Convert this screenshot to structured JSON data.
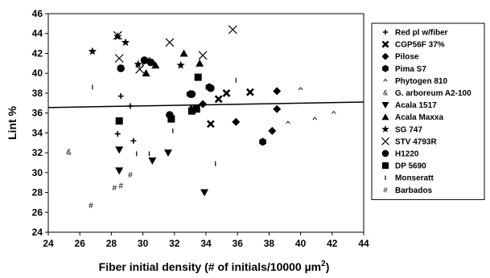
{
  "chart_data": {
    "type": "scatter",
    "title": "",
    "xlabel": "Fiber initial density (# of initials/10000 µm²)",
    "xlabel_main": "Fiber initial density (# of initials/10000 ",
    "xlabel_unit": "µm",
    "xlabel_sup": "2",
    "xlabel_end": ")",
    "ylabel": "Lint %",
    "xlim": [
      24,
      44
    ],
    "ylim": [
      24,
      46
    ],
    "xticks": [
      "24",
      "26",
      "28",
      "30",
      "32",
      "34",
      "36",
      "38",
      "40",
      "42",
      "44"
    ],
    "yticks": [
      "24",
      "26",
      "28",
      "30",
      "32",
      "34",
      "36",
      "38",
      "40",
      "42",
      "44",
      "46"
    ],
    "grid": false,
    "legend_position": "right",
    "trendline": {
      "x": [
        24,
        44
      ],
      "y": [
        36.55,
        37.1
      ]
    },
    "series": [
      {
        "name": "Red pl w/fiber",
        "marker": "plus",
        "points": [
          [
            28.6,
            37.7
          ],
          [
            29.2,
            36.7
          ],
          [
            28.4,
            33.9
          ],
          [
            29.4,
            33.2
          ]
        ]
      },
      {
        "name": "CGP56F 37%",
        "marker": "x-bold",
        "points": [
          [
            34.3,
            34.9
          ],
          [
            35.3,
            38.0
          ],
          [
            36.8,
            38.1
          ],
          [
            34.8,
            37.4
          ],
          [
            33.2,
            36.4
          ]
        ]
      },
      {
        "name": "Pilose",
        "marker": "diamond",
        "points": [
          [
            35.9,
            35.1
          ],
          [
            38.5,
            38.2
          ],
          [
            38.5,
            36.4
          ],
          [
            38.2,
            34.2
          ],
          [
            33.8,
            36.9
          ],
          [
            33.0,
            37.9
          ]
        ]
      },
      {
        "name": "Pima S7",
        "marker": "hexagon",
        "points": [
          [
            37.6,
            33.1
          ],
          [
            34.2,
            38.6
          ],
          [
            33.0,
            37.9
          ]
        ]
      },
      {
        "name": "Phytogen 810",
        "marker": "caret",
        "points": [
          [
            40.0,
            38.4
          ],
          [
            39.2,
            35.0
          ],
          [
            40.9,
            35.4
          ],
          [
            42.1,
            36.0
          ]
        ]
      },
      {
        "name": "G. arboreum A2-100",
        "marker": "amp",
        "points": [
          [
            25.3,
            32.1
          ]
        ]
      },
      {
        "name": "Acala 1517",
        "marker": "tri-down",
        "points": [
          [
            28.5,
            32.3
          ],
          [
            28.5,
            30.2
          ],
          [
            30.6,
            31.2
          ],
          [
            31.6,
            32.0
          ],
          [
            33.9,
            28.0
          ]
        ]
      },
      {
        "name": "Acala Maxxa",
        "marker": "tri-up",
        "points": [
          [
            30.2,
            40.0
          ],
          [
            32.6,
            42.0
          ],
          [
            33.6,
            41.0
          ],
          [
            30.8,
            40.8
          ]
        ]
      },
      {
        "name": "SG 747",
        "marker": "star",
        "points": [
          [
            26.8,
            42.2
          ],
          [
            28.9,
            43.1
          ],
          [
            28.4,
            43.7
          ],
          [
            32.4,
            40.8
          ],
          [
            29.7,
            40.9
          ]
        ]
      },
      {
        "name": "STV 4793R",
        "marker": "x-thin",
        "points": [
          [
            28.4,
            43.8
          ],
          [
            28.5,
            41.5
          ],
          [
            31.7,
            43.1
          ],
          [
            33.8,
            41.8
          ],
          [
            35.7,
            44.4
          ],
          [
            29.8,
            40.4
          ],
          [
            30.2,
            41.2
          ]
        ]
      },
      {
        "name": "H1220",
        "marker": "circle",
        "points": [
          [
            28.6,
            40.5
          ],
          [
            30.1,
            41.3
          ],
          [
            30.5,
            41.1
          ],
          [
            31.7,
            35.8
          ],
          [
            33.1,
            37.9
          ],
          [
            34.3,
            38.5
          ]
        ]
      },
      {
        "name": "DP 5690",
        "marker": "square",
        "points": [
          [
            28.5,
            35.2
          ],
          [
            31.8,
            35.4
          ],
          [
            33.1,
            36.2
          ],
          [
            33.5,
            39.6
          ],
          [
            33.4,
            36.4
          ]
        ]
      },
      {
        "name": "Monseratt",
        "marker": "bar",
        "points": [
          [
            26.8,
            38.6
          ],
          [
            31.9,
            34.2
          ],
          [
            34.6,
            30.9
          ],
          [
            35.9,
            39.3
          ],
          [
            29.6,
            31.9
          ],
          [
            30.4,
            31.9
          ]
        ]
      },
      {
        "name": "Barbados",
        "marker": "hash",
        "points": [
          [
            26.7,
            26.7
          ],
          [
            28.2,
            28.5
          ],
          [
            28.6,
            28.7
          ],
          [
            29.2,
            29.8
          ]
        ]
      }
    ]
  }
}
